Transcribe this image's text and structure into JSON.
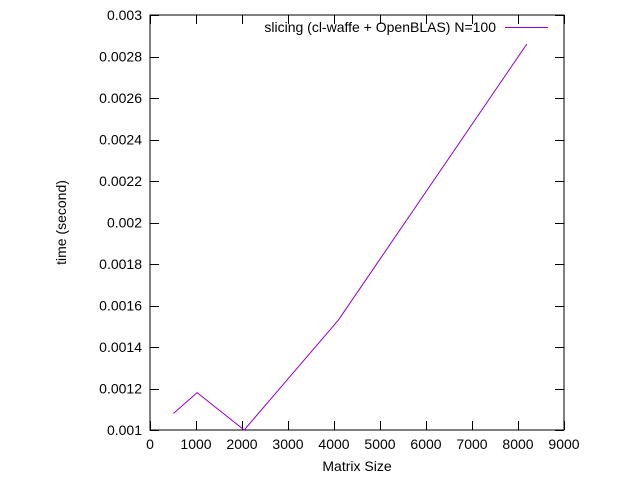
{
  "chart_data": {
    "type": "line",
    "title": "",
    "xlabel": "Matrix Size",
    "ylabel": "time (second)",
    "xlim": [
      0,
      9000
    ],
    "ylim": [
      0.001,
      0.003
    ],
    "x_ticks": [
      0,
      1000,
      2000,
      3000,
      4000,
      5000,
      6000,
      7000,
      8000,
      9000
    ],
    "x_tick_labels": [
      "0",
      "1000",
      "2000",
      "3000",
      "4000",
      "5000",
      "6000",
      "7000",
      "8000",
      "9000"
    ],
    "y_ticks": [
      0.001,
      0.0012,
      0.0014,
      0.0016,
      0.0018,
      0.002,
      0.0022,
      0.0024,
      0.0026,
      0.0028,
      0.003
    ],
    "y_tick_labels": [
      "0.001",
      "0.0012",
      "0.0014",
      "0.0016",
      "0.0018",
      "0.002",
      "0.0022",
      "0.0024",
      "0.0026",
      "0.0028",
      "0.003"
    ],
    "grid": false,
    "legend_position": "top-right",
    "series": [
      {
        "name": "slicing (cl-waffe + OpenBLAS) N=100",
        "color": "#9400d3",
        "x": [
          512,
          1024,
          2048,
          4096,
          8192
        ],
        "y": [
          0.00108,
          0.00118,
          0.001,
          0.00153,
          0.00286
        ]
      }
    ]
  }
}
